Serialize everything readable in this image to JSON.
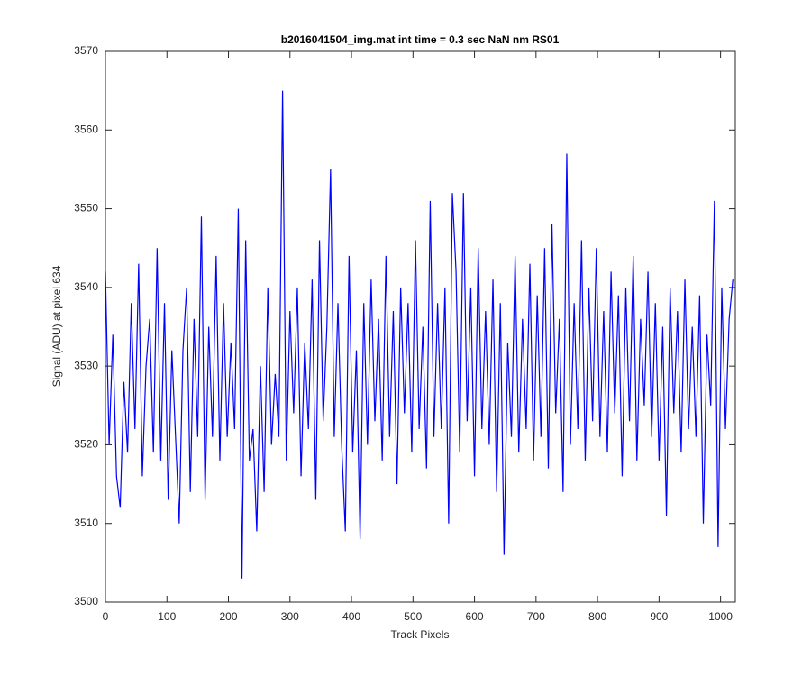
{
  "chart_data": {
    "type": "line",
    "title": "b2016041504_img.mat int time = 0.3 sec  NaN nm RS01",
    "x_label": "Track Pixels",
    "y_label": "Signal (ADU) at pixel 634",
    "xlim": [
      0,
      1024
    ],
    "xticks": [
      0,
      100,
      200,
      300,
      400,
      500,
      600,
      700,
      800,
      900,
      1000
    ],
    "ylim": [
      3500,
      3570
    ],
    "yticks": [
      3500,
      3510,
      3520,
      3530,
      3540,
      3550,
      3560,
      3570
    ],
    "grid": false,
    "x": [
      0,
      6,
      12,
      18,
      24,
      30,
      36,
      42,
      48,
      54,
      60,
      66,
      72,
      78,
      84,
      90,
      96,
      102,
      108,
      114,
      120,
      126,
      132,
      138,
      144,
      150,
      156,
      162,
      168,
      174,
      180,
      186,
      192,
      198,
      204,
      210,
      216,
      222,
      228,
      234,
      240,
      246,
      252,
      258,
      264,
      270,
      276,
      282,
      288,
      294,
      300,
      306,
      312,
      318,
      324,
      330,
      336,
      342,
      348,
      354,
      360,
      366,
      372,
      378,
      384,
      390,
      396,
      402,
      408,
      414,
      420,
      426,
      432,
      438,
      444,
      450,
      456,
      462,
      468,
      474,
      480,
      486,
      492,
      498,
      504,
      510,
      516,
      522,
      528,
      534,
      540,
      546,
      552,
      558,
      564,
      570,
      576,
      582,
      588,
      594,
      600,
      606,
      612,
      618,
      624,
      630,
      636,
      642,
      648,
      654,
      660,
      666,
      672,
      678,
      684,
      690,
      696,
      702,
      708,
      714,
      720,
      726,
      732,
      738,
      744,
      750,
      756,
      762,
      768,
      774,
      780,
      786,
      792,
      798,
      804,
      810,
      816,
      822,
      828,
      834,
      840,
      846,
      852,
      858,
      864,
      870,
      876,
      882,
      888,
      894,
      900,
      906,
      912,
      918,
      924,
      930,
      936,
      942,
      948,
      954,
      960,
      966,
      972,
      978,
      984,
      990,
      996,
      1002,
      1008,
      1014,
      1020
    ],
    "series": [
      {
        "name": "Signal",
        "color": "#0000ff",
        "values": [
          3542,
          3520,
          3534,
          3516,
          3512,
          3528,
          3519,
          3538,
          3522,
          3543,
          3516,
          3530,
          3536,
          3519,
          3545,
          3518,
          3538,
          3513,
          3532,
          3521,
          3510,
          3532,
          3540,
          3514,
          3536,
          3521,
          3549,
          3513,
          3535,
          3521,
          3544,
          3518,
          3538,
          3521,
          3533,
          3522,
          3550,
          3503,
          3546,
          3518,
          3522,
          3509,
          3530,
          3514,
          3540,
          3520,
          3529,
          3521,
          3565,
          3518,
          3537,
          3524,
          3540,
          3516,
          3533,
          3522,
          3541,
          3513,
          3546,
          3523,
          3535,
          3555,
          3521,
          3538,
          3520,
          3509,
          3544,
          3519,
          3532,
          3508,
          3538,
          3520,
          3541,
          3523,
          3536,
          3518,
          3544,
          3521,
          3537,
          3515,
          3540,
          3524,
          3538,
          3519,
          3546,
          3522,
          3535,
          3517,
          3551,
          3521,
          3538,
          3522,
          3540,
          3510,
          3552,
          3542,
          3519,
          3552,
          3523,
          3540,
          3516,
          3545,
          3522,
          3537,
          3520,
          3541,
          3514,
          3538,
          3506,
          3533,
          3521,
          3544,
          3519,
          3536,
          3522,
          3543,
          3518,
          3539,
          3521,
          3545,
          3517,
          3548,
          3524,
          3536,
          3514,
          3557,
          3520,
          3538,
          3522,
          3546,
          3518,
          3540,
          3523,
          3545,
          3521,
          3537,
          3519,
          3542,
          3524,
          3539,
          3516,
          3540,
          3523,
          3544,
          3518,
          3536,
          3525,
          3542,
          3521,
          3538,
          3518,
          3535,
          3511,
          3540,
          3524,
          3537,
          3519,
          3541,
          3522,
          3535,
          3521,
          3539,
          3510,
          3534,
          3525,
          3551,
          3507,
          3540,
          3522,
          3536,
          3541
        ]
      }
    ]
  }
}
